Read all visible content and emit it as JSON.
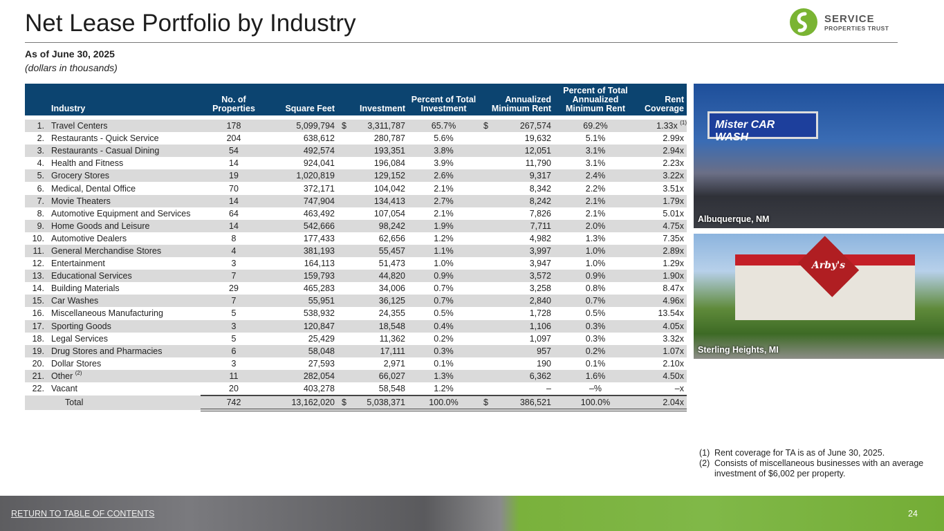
{
  "title": "Net Lease Portfolio by Industry",
  "logo": {
    "line1": "SERVICE",
    "line2": "PROPERTIES TRUST"
  },
  "as_of": "As of June 30, 2025",
  "units": "(dollars in thousands)",
  "columns": {
    "industry": "Industry",
    "properties": "No. of Properties",
    "sqft": "Square Feet",
    "investment": "Investment",
    "pct_investment": "Percent of Total Investment",
    "rent": "Annualized Minimum Rent",
    "pct_rent": "Percent of Total Annualized Minimum Rent",
    "coverage": "Rent Coverage"
  },
  "rows": [
    {
      "n": "1.",
      "industry": "Travel Centers",
      "properties": "178",
      "sqft": "5,099,794",
      "inv_dollar": "$",
      "investment": "3,311,787",
      "pct_investment": "65.7%",
      "rent_dollar": "$",
      "rent": "267,574",
      "pct_rent": "69.2%",
      "coverage": "1.33x",
      "coverage_note": "(1)"
    },
    {
      "n": "2.",
      "industry": "Restaurants - Quick Service",
      "properties": "204",
      "sqft": "638,612",
      "investment": "280,787",
      "pct_investment": "5.6%",
      "rent": "19,632",
      "pct_rent": "5.1%",
      "coverage": "2.99x"
    },
    {
      "n": "3.",
      "industry": "Restaurants - Casual Dining",
      "properties": "54",
      "sqft": "492,574",
      "investment": "193,351",
      "pct_investment": "3.8%",
      "rent": "12,051",
      "pct_rent": "3.1%",
      "coverage": "2.94x"
    },
    {
      "n": "4.",
      "industry": "Health and Fitness",
      "properties": "14",
      "sqft": "924,041",
      "investment": "196,084",
      "pct_investment": "3.9%",
      "rent": "11,790",
      "pct_rent": "3.1%",
      "coverage": "2.23x"
    },
    {
      "n": "5.",
      "industry": "Grocery Stores",
      "properties": "19",
      "sqft": "1,020,819",
      "investment": "129,152",
      "pct_investment": "2.6%",
      "rent": "9,317",
      "pct_rent": "2.4%",
      "coverage": "3.22x"
    },
    {
      "n": "6.",
      "industry": "Medical, Dental Office",
      "properties": "70",
      "sqft": "372,171",
      "investment": "104,042",
      "pct_investment": "2.1%",
      "rent": "8,342",
      "pct_rent": "2.2%",
      "coverage": "3.51x"
    },
    {
      "n": "7.",
      "industry": "Movie Theaters",
      "properties": "14",
      "sqft": "747,904",
      "investment": "134,413",
      "pct_investment": "2.7%",
      "rent": "8,242",
      "pct_rent": "2.1%",
      "coverage": "1.79x"
    },
    {
      "n": "8.",
      "industry": "Automotive Equipment and Services",
      "properties": "64",
      "sqft": "463,492",
      "investment": "107,054",
      "pct_investment": "2.1%",
      "rent": "7,826",
      "pct_rent": "2.1%",
      "coverage": "5.01x"
    },
    {
      "n": "9.",
      "industry": "Home Goods and Leisure",
      "properties": "14",
      "sqft": "542,666",
      "investment": "98,242",
      "pct_investment": "1.9%",
      "rent": "7,711",
      "pct_rent": "2.0%",
      "coverage": "4.75x"
    },
    {
      "n": "10.",
      "industry": "Automotive Dealers",
      "properties": "8",
      "sqft": "177,433",
      "investment": "62,656",
      "pct_investment": "1.2%",
      "rent": "4,982",
      "pct_rent": "1.3%",
      "coverage": "7.35x"
    },
    {
      "n": "11.",
      "industry": "General Merchandise Stores",
      "properties": "4",
      "sqft": "381,193",
      "investment": "55,457",
      "pct_investment": "1.1%",
      "rent": "3,997",
      "pct_rent": "1.0%",
      "coverage": "2.89x"
    },
    {
      "n": "12.",
      "industry": "Entertainment",
      "properties": "3",
      "sqft": "164,113",
      "investment": "51,473",
      "pct_investment": "1.0%",
      "rent": "3,947",
      "pct_rent": "1.0%",
      "coverage": "1.29x"
    },
    {
      "n": "13.",
      "industry": "Educational Services",
      "properties": "7",
      "sqft": "159,793",
      "investment": "44,820",
      "pct_investment": "0.9%",
      "rent": "3,572",
      "pct_rent": "0.9%",
      "coverage": "1.90x"
    },
    {
      "n": "14.",
      "industry": "Building Materials",
      "properties": "29",
      "sqft": "465,283",
      "investment": "34,006",
      "pct_investment": "0.7%",
      "rent": "3,258",
      "pct_rent": "0.8%",
      "coverage": "8.47x"
    },
    {
      "n": "15.",
      "industry": "Car Washes",
      "properties": "7",
      "sqft": "55,951",
      "investment": "36,125",
      "pct_investment": "0.7%",
      "rent": "2,840",
      "pct_rent": "0.7%",
      "coverage": "4.96x"
    },
    {
      "n": "16.",
      "industry": "Miscellaneous Manufacturing",
      "properties": "5",
      "sqft": "538,932",
      "investment": "24,355",
      "pct_investment": "0.5%",
      "rent": "1,728",
      "pct_rent": "0.5%",
      "coverage": "13.54x"
    },
    {
      "n": "17.",
      "industry": "Sporting Goods",
      "properties": "3",
      "sqft": "120,847",
      "investment": "18,548",
      "pct_investment": "0.4%",
      "rent": "1,106",
      "pct_rent": "0.3%",
      "coverage": "4.05x"
    },
    {
      "n": "18.",
      "industry": "Legal Services",
      "properties": "5",
      "sqft": "25,429",
      "investment": "11,362",
      "pct_investment": "0.2%",
      "rent": "1,097",
      "pct_rent": "0.3%",
      "coverage": "3.32x"
    },
    {
      "n": "19.",
      "industry": "Drug Stores and Pharmacies",
      "properties": "6",
      "sqft": "58,048",
      "investment": "17,111",
      "pct_investment": "0.3%",
      "rent": "957",
      "pct_rent": "0.2%",
      "coverage": "1.07x"
    },
    {
      "n": "20.",
      "industry": "Dollar Stores",
      "properties": "3",
      "sqft": "27,593",
      "investment": "2,971",
      "pct_investment": "0.1%",
      "rent": "190",
      "pct_rent": "0.1%",
      "coverage": "2.10x"
    },
    {
      "n": "21.",
      "industry": "Other",
      "industry_note": "(2)",
      "properties": "11",
      "sqft": "282,054",
      "investment": "66,027",
      "pct_investment": "1.3%",
      "rent": "6,362",
      "pct_rent": "1.6%",
      "coverage": "4.50x"
    },
    {
      "n": "22.",
      "industry": "Vacant",
      "properties": "20",
      "sqft": "403,278",
      "investment": "58,548",
      "pct_investment": "1.2%",
      "rent": "–",
      "pct_rent": "–%",
      "coverage": "–x"
    }
  ],
  "total": {
    "label": "Total",
    "properties": "742",
    "sqft": "13,162,020",
    "inv_dollar": "$",
    "investment": "5,038,371",
    "pct_investment": "100.0%",
    "rent_dollar": "$",
    "rent": "386,521",
    "pct_rent": "100.0%",
    "coverage": "2.04x"
  },
  "photos": [
    {
      "caption": "Albuquerque, NM",
      "sign": "Mister CAR WASH"
    },
    {
      "caption": "Sterling Heights, MI",
      "sign": "Arby's"
    }
  ],
  "footnotes": [
    {
      "n": "(1)",
      "text": "Rent coverage for TA is as of June 30, 2025."
    },
    {
      "n": "(2)",
      "text": "Consists of miscellaneous businesses with an average investment of $6,002 per property."
    }
  ],
  "footer": {
    "toc_link": "RETURN TO TABLE OF CONTENTS",
    "page": "24"
  }
}
